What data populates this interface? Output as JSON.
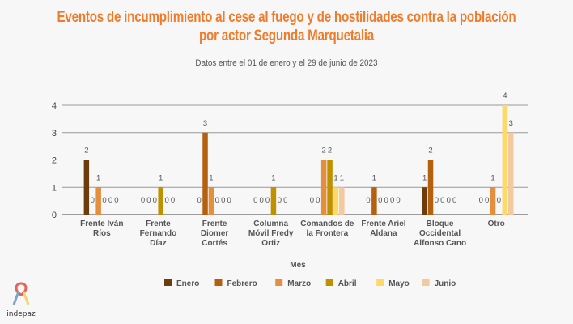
{
  "chart_data": {
    "type": "bar",
    "title": "Eventos de incumplimiento al cese al fuego y de hostilidades contra la población por actor Segunda Marquetalia",
    "title_lines": [
      "Eventos de incumplimiento al cese al fuego y de hostilidades contra la población",
      "por actor Segunda Marquetalia"
    ],
    "subtitle": "Datos entre el 01 de enero y el 29 de junio de 2023",
    "xlabel": "Mes",
    "ylabel": "",
    "ylim": [
      0,
      4
    ],
    "yticks": [
      "0",
      "1",
      "2",
      "3",
      "4"
    ],
    "grid": true,
    "legend_position": "bottom",
    "categories": [
      [
        "Frente Iván",
        "Ríos"
      ],
      [
        "Frente",
        "Fernando",
        "Díaz"
      ],
      [
        "Frente",
        "Diomer",
        "Cortés"
      ],
      [
        "Columna",
        "Móvil Fredy",
        "Ortiz"
      ],
      [
        "Comandos de",
        "la Frontera"
      ],
      [
        "Frente Ariel",
        "Aldana"
      ],
      [
        "Bloque",
        "Occidental",
        "Alfonso Cano"
      ],
      [
        "Otro"
      ]
    ],
    "series": [
      {
        "name": "Enero",
        "color": "#6b3c0c",
        "values": [
          2,
          0,
          0,
          0,
          0,
          0,
          1,
          0
        ]
      },
      {
        "name": "Febrero",
        "color": "#b4600f",
        "values": [
          0,
          0,
          3,
          0,
          0,
          1,
          2,
          0
        ]
      },
      {
        "name": "Marzo",
        "color": "#e38f3e",
        "values": [
          1,
          0,
          1,
          0,
          2,
          0,
          0,
          1
        ]
      },
      {
        "name": "Abril",
        "color": "#bf9000",
        "values": [
          0,
          1,
          0,
          1,
          2,
          0,
          0,
          0
        ]
      },
      {
        "name": "Mayo",
        "color": "#ffd966",
        "values": [
          0,
          0,
          0,
          0,
          1,
          0,
          0,
          4
        ]
      },
      {
        "name": "Junio",
        "color": "#f3c9a1",
        "values": [
          0,
          0,
          0,
          0,
          1,
          0,
          0,
          3
        ]
      }
    ]
  },
  "logo": {
    "text": "indepaz"
  }
}
